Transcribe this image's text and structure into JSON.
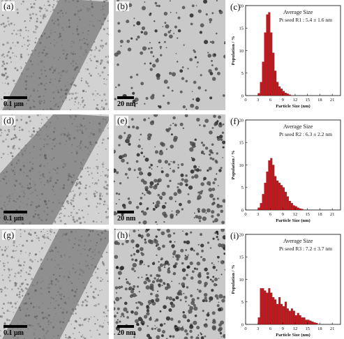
{
  "rows": [
    {
      "tem_left_label": "(a)",
      "tem_left_scale": "0.1 μm",
      "tem_mid_label": "(b)",
      "tem_mid_scale": "20 nm",
      "chart_label": "(c)"
    },
    {
      "tem_left_label": "(d)",
      "tem_left_scale": "0.1 μm",
      "tem_mid_label": "(e)",
      "tem_mid_scale": "20 nm",
      "chart_label": "(f)"
    },
    {
      "tem_left_label": "(g)",
      "tem_left_scale": "0.1 μm",
      "tem_mid_label": "(h)",
      "tem_mid_scale": "20 nm",
      "chart_label": "(i)"
    }
  ],
  "chart_data": [
    {
      "type": "bar",
      "annotation_title": "Average Size",
      "annotation": "Pt seed R1 : 5.4 ± 1.6 nm",
      "xlabel": "Particle Size (nm)",
      "ylabel": "Population / %",
      "xlim": [
        0,
        23
      ],
      "ylim": [
        0,
        20
      ],
      "xticks": [
        0,
        3,
        6,
        9,
        12,
        15,
        18,
        21
      ],
      "yticks": [
        0,
        5,
        10,
        15,
        20
      ],
      "bin_width": 0.5,
      "x": [
        3.0,
        3.5,
        4.0,
        4.5,
        5.0,
        5.5,
        6.0,
        6.5,
        7.0,
        7.5,
        8.0,
        8.5,
        9.0,
        9.5,
        10.0,
        10.5
      ],
      "values": [
        0.5,
        3.0,
        7.5,
        14.0,
        18.0,
        18.5,
        14.0,
        9.5,
        5.5,
        3.0,
        2.0,
        1.5,
        1.0,
        0.6,
        0.4,
        0.2
      ],
      "bar_color": "#c4161c"
    },
    {
      "type": "bar",
      "annotation_title": "Average Size",
      "annotation": "Pt seed R2 : 6.3 ± 2.2 nm",
      "xlabel": "Particle Size (nm)",
      "ylabel": "Population / %",
      "xlim": [
        0,
        23
      ],
      "ylim": [
        0,
        20
      ],
      "xticks": [
        0,
        3,
        6,
        9,
        12,
        15,
        18,
        21
      ],
      "yticks": [
        0,
        5,
        10,
        15,
        20
      ],
      "bin_width": 0.5,
      "x": [
        3.0,
        3.5,
        4.0,
        4.5,
        5.0,
        5.5,
        6.0,
        6.5,
        7.0,
        7.5,
        8.0,
        8.5,
        9.0,
        9.5,
        10.0,
        10.5,
        11.0,
        11.5,
        12.0,
        12.5,
        13.0,
        13.5
      ],
      "values": [
        0.5,
        1.5,
        3.5,
        6.0,
        8.5,
        11.0,
        11.5,
        10.0,
        7.5,
        6.5,
        6.0,
        5.5,
        5.0,
        4.0,
        3.0,
        2.0,
        1.5,
        1.0,
        0.8,
        0.5,
        0.3,
        0.2
      ],
      "bar_color": "#c4161c"
    },
    {
      "type": "bar",
      "annotation_title": "Average Size",
      "annotation": "Pt seed R3 : 7.2 ± 3.7 nm",
      "xlabel": "Particle Size (nm)",
      "ylabel": "Population / %",
      "xlim": [
        0,
        23
      ],
      "ylim": [
        0,
        20
      ],
      "xticks": [
        0,
        3,
        6,
        9,
        12,
        15,
        18,
        21
      ],
      "yticks": [
        0,
        5,
        10,
        15,
        20
      ],
      "bin_width": 0.5,
      "x": [
        3.0,
        3.5,
        4.0,
        4.5,
        5.0,
        5.5,
        6.0,
        6.5,
        7.0,
        7.5,
        8.0,
        8.5,
        9.0,
        9.5,
        10.0,
        10.5,
        11.0,
        11.5,
        12.0,
        12.5,
        13.0,
        13.5,
        14.0,
        14.5,
        15.0,
        15.5,
        16.0,
        16.5,
        17.0
      ],
      "values": [
        1.5,
        8.0,
        8.0,
        7.5,
        7.0,
        8.0,
        7.0,
        6.0,
        5.5,
        4.5,
        6.0,
        4.5,
        4.0,
        5.0,
        3.5,
        3.0,
        3.5,
        3.0,
        2.0,
        2.5,
        2.0,
        1.5,
        1.5,
        1.0,
        1.0,
        0.8,
        0.6,
        0.4,
        0.3
      ],
      "bar_color": "#c4161c"
    }
  ]
}
